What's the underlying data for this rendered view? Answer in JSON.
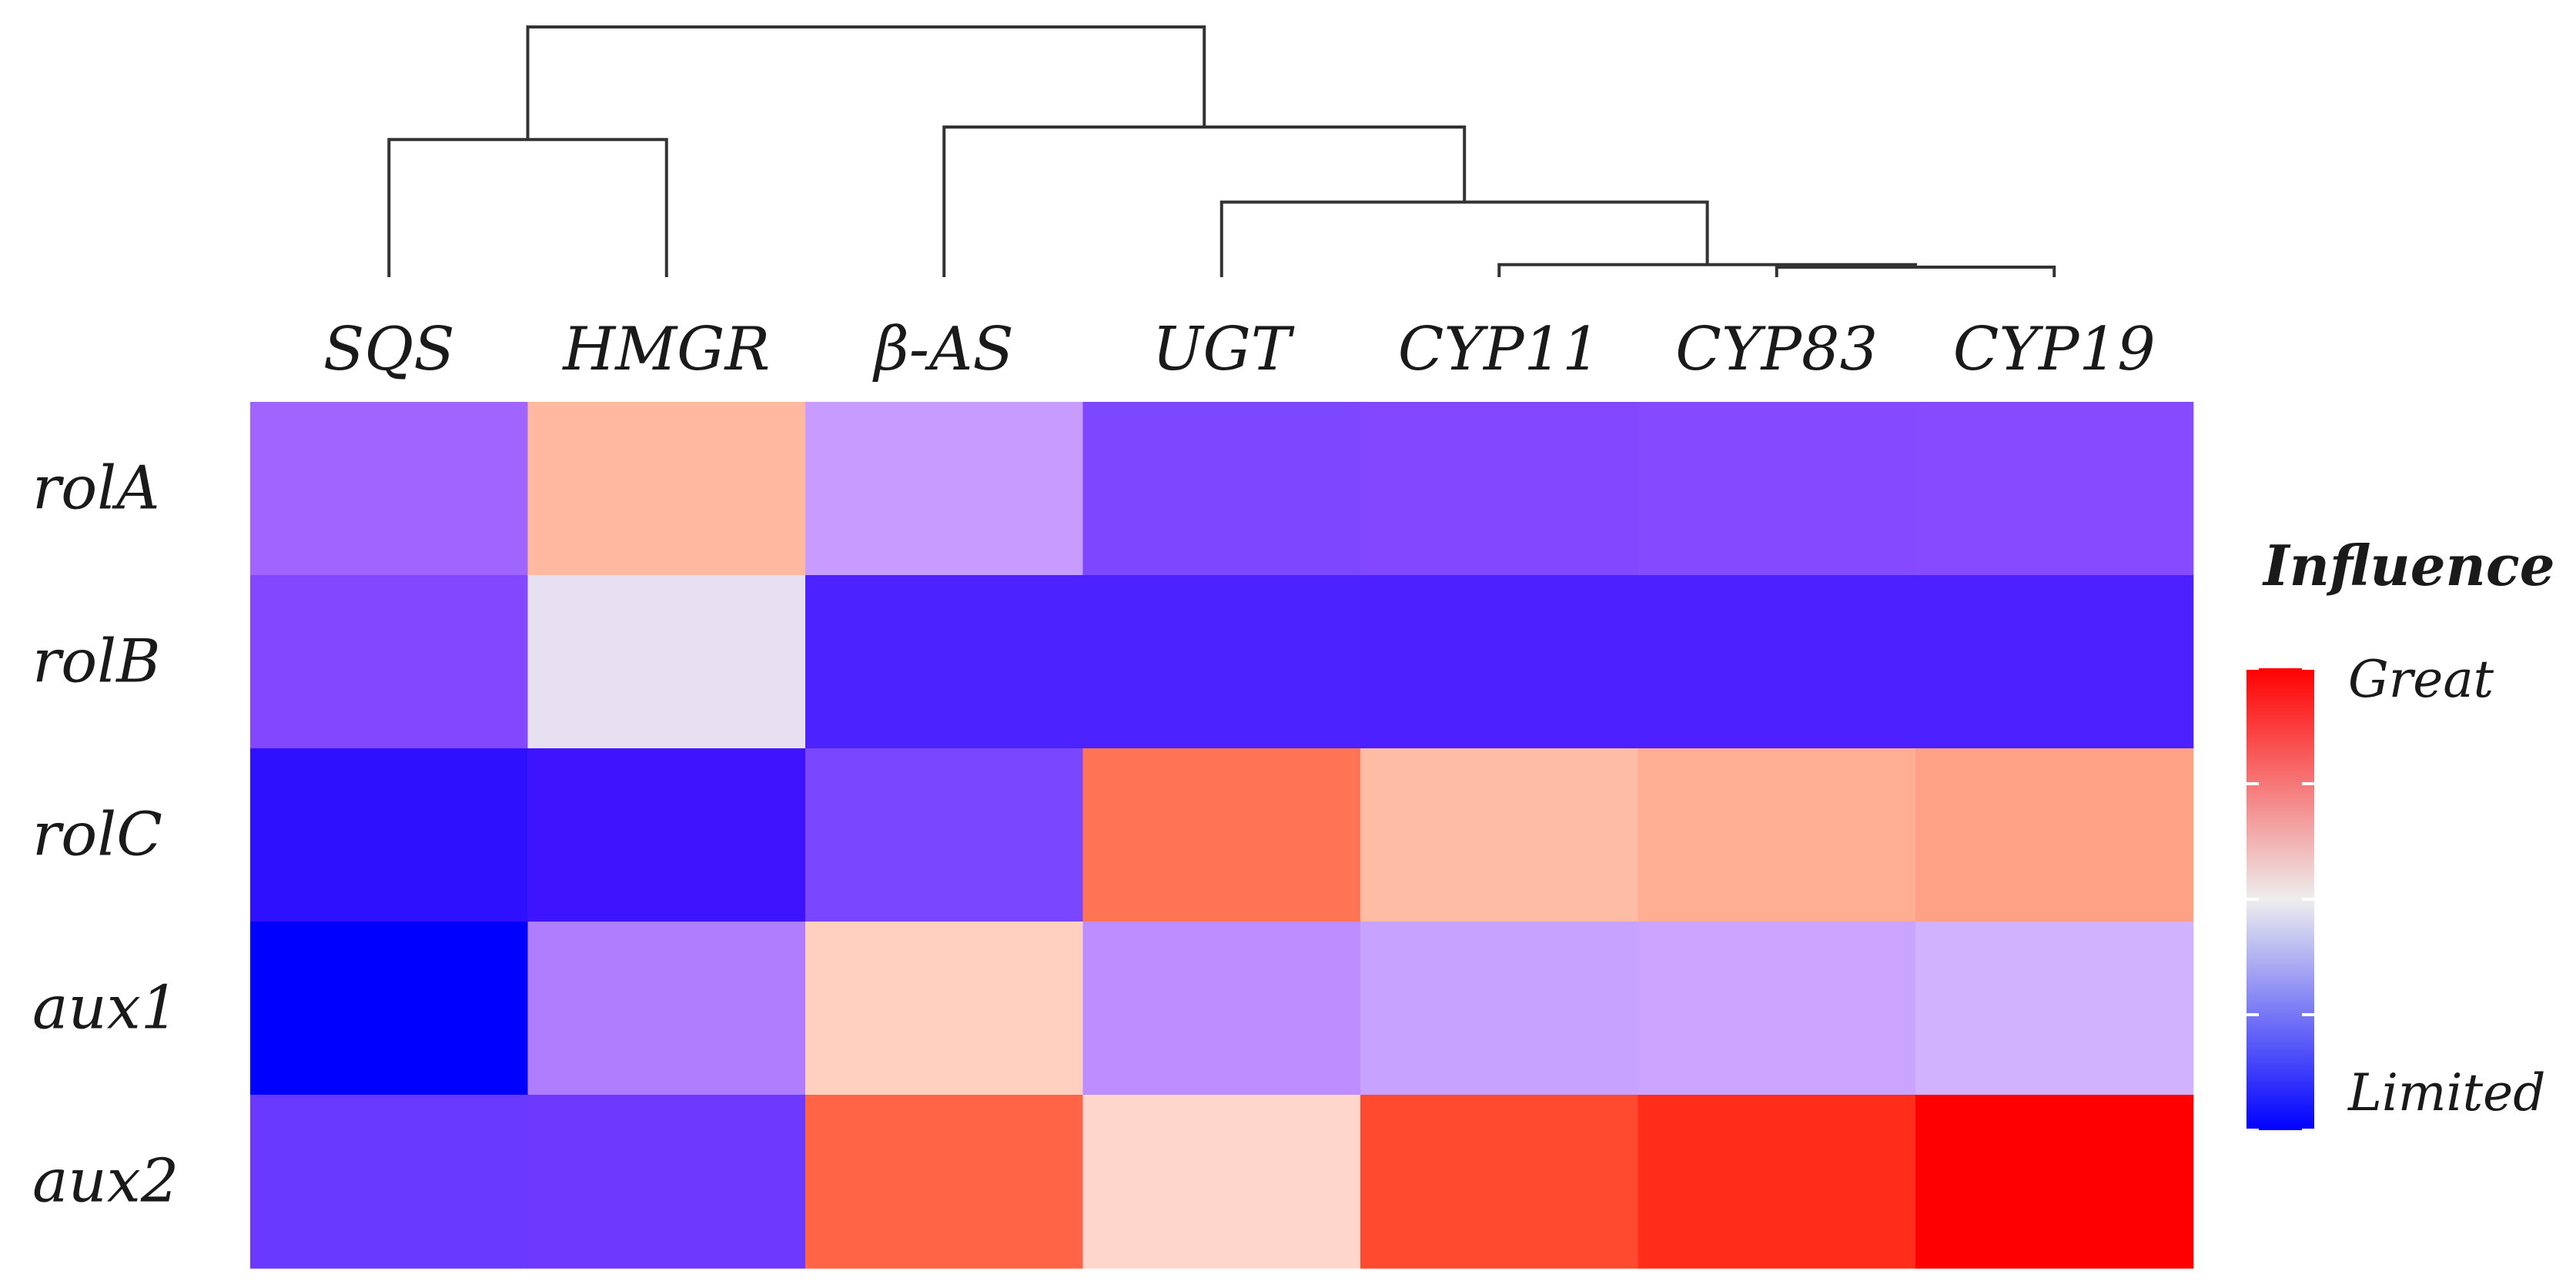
{
  "chart_data": {
    "type": "heatmap",
    "title": "",
    "xlabel": "",
    "ylabel": "",
    "columns": [
      "SQS",
      "HMGR",
      "β-AS",
      "UGT",
      "CYP11",
      "CYP83",
      "CYP19"
    ],
    "rows": [
      "rolA",
      "rolB",
      "rolC",
      "aux1",
      "aux2"
    ],
    "values": [
      [
        -0.6,
        0.45,
        -0.3,
        -0.8,
        -0.75,
        -0.75,
        -0.75
      ],
      [
        -0.7,
        -0.05,
        -0.9,
        -0.9,
        -0.9,
        -0.9,
        -0.9
      ],
      [
        -0.95,
        -0.92,
        -0.78,
        0.7,
        0.35,
        0.4,
        0.48
      ],
      [
        -1.0,
        -0.5,
        0.25,
        -0.4,
        -0.3,
        -0.3,
        -0.25
      ],
      [
        -0.85,
        -0.8,
        0.75,
        0.18,
        0.85,
        0.92,
        1.0
      ]
    ],
    "cell_colors": [
      [
        "#a064ff",
        "#ffb9a0",
        "#c89bff",
        "#7d46ff",
        "#8347ff",
        "#8549ff",
        "#874aff"
      ],
      [
        "#8247ff",
        "#e6e0f0",
        "#4c23ff",
        "#4c23ff",
        "#4d21ff",
        "#4d21ff",
        "#4d20ff"
      ],
      [
        "#2e10ff",
        "#3e14ff",
        "#7b46ff",
        "#ff7455",
        "#ffbca5",
        "#ffae92",
        "#ffa185"
      ],
      [
        "#0000ff",
        "#b07dff",
        "#ffd0c0",
        "#bd8cff",
        "#c8a2ff",
        "#caa4ff",
        "#d1b2ff"
      ],
      [
        "#6a39ff",
        "#6e38ff",
        "#ff6446",
        "#ffd6cc",
        "#ff4a30",
        "#ff2d1a",
        "#ff0000"
      ]
    ],
    "dendrogram": {
      "merges": [
        [
          "CYP83",
          "CYP19"
        ],
        [
          "CYP11",
          "CYP83+CYP19"
        ],
        [
          "UGT",
          "CYP11+CYP83+CYP19"
        ],
        [
          "β-AS",
          "UGT+CYP11+CYP83+CYP19"
        ],
        [
          "SQS",
          "HMGR"
        ],
        [
          "SQS+HMGR",
          "β-AS+UGT+CYP11+CYP83+CYP19"
        ]
      ],
      "heights": [
        0.04,
        0.05,
        0.3,
        0.6,
        0.55,
        1.0
      ]
    },
    "legend": {
      "title": "Influence",
      "high_label": "Great",
      "low_label": "Limited",
      "range": [
        -1,
        1
      ],
      "placement": "right"
    }
  }
}
